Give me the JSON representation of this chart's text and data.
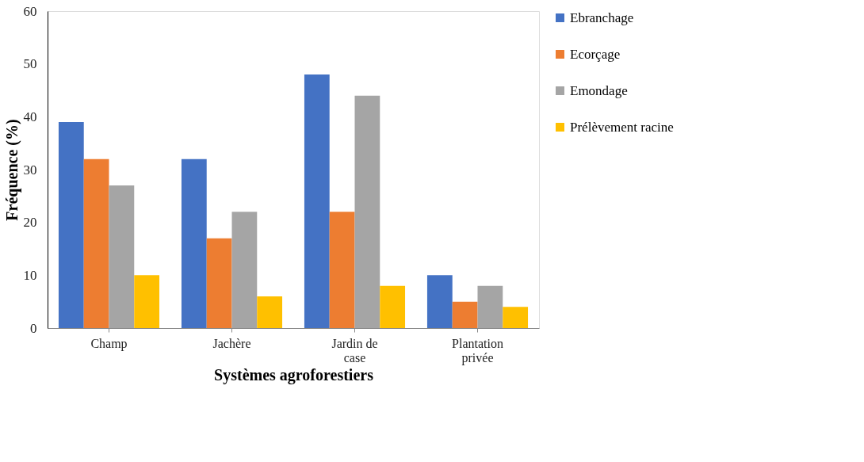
{
  "chart_data": {
    "type": "bar",
    "xlabel": "Systèmes agroforestiers",
    "ylabel": "Fréquence (%)",
    "categories": [
      "Champ",
      "Jachère",
      "Jardin de case",
      "Plantation privée"
    ],
    "series": [
      {
        "name": "Ebranchage",
        "color": "#4472c4",
        "values": [
          39,
          32,
          48,
          10
        ]
      },
      {
        "name": "Ecorçage",
        "color": "#ed7d31",
        "values": [
          32,
          17,
          22,
          5
        ]
      },
      {
        "name": "Emondage",
        "color": "#a5a5a5",
        "values": [
          27,
          22,
          44,
          8
        ]
      },
      {
        "name": "Prélèvement racine",
        "color": "#ffc000",
        "values": [
          10,
          6,
          8,
          4
        ]
      }
    ],
    "ylim": [
      0,
      60
    ],
    "yticks": [
      0,
      10,
      20,
      30,
      40,
      50,
      60
    ],
    "grid": false,
    "legend": "right"
  }
}
